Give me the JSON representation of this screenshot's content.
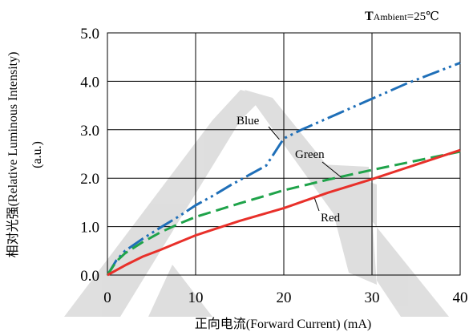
{
  "chart_data": {
    "type": "line",
    "condition": {
      "bold": "T",
      "sub": "Ambient",
      "rest": "=25℃"
    },
    "xlabel": "正向电流(Forward Current) (mA)",
    "ylabel_line1": "相对光强(Relative Luminous Intensity)",
    "ylabel_line2": "(a.u.)",
    "xlim": [
      0,
      40
    ],
    "ylim": [
      0,
      5
    ],
    "xticks": [
      0,
      10,
      20,
      30,
      40
    ],
    "yticks": [
      0,
      1,
      2,
      3,
      4,
      5
    ],
    "xtick_labels": [
      "0",
      "10",
      "20",
      "30",
      "40"
    ],
    "ytick_labels": [
      "0.0",
      "1.0",
      "2.0",
      "3.0",
      "4.0",
      "5.0"
    ],
    "grid": true,
    "series": [
      {
        "name": "Blue",
        "color": "#1f6fb8",
        "style": "dash-dot-dot",
        "x": [
          0,
          1,
          2,
          4,
          6,
          8,
          10,
          12,
          14,
          16,
          18,
          20,
          22,
          24,
          26,
          28,
          30,
          32,
          34,
          36,
          38,
          40
        ],
        "y": [
          0,
          0.3,
          0.5,
          0.75,
          0.98,
          1.2,
          1.44,
          1.64,
          1.86,
          2.06,
          2.26,
          2.82,
          3.0,
          3.16,
          3.32,
          3.48,
          3.64,
          3.8,
          3.96,
          4.1,
          4.24,
          4.38
        ]
      },
      {
        "name": "Green",
        "color": "#1fa34a",
        "style": "dashed",
        "x": [
          0,
          1,
          2,
          4,
          6,
          8,
          10,
          15,
          20,
          25,
          30,
          35,
          40
        ],
        "y": [
          0,
          0.28,
          0.45,
          0.68,
          0.88,
          1.05,
          1.2,
          1.48,
          1.75,
          1.97,
          2.17,
          2.36,
          2.55
        ]
      },
      {
        "name": "Red",
        "color": "#e8302a",
        "style": "solid",
        "x": [
          0,
          2,
          4,
          6,
          8,
          10,
          15,
          20,
          25,
          30,
          35,
          40
        ],
        "y": [
          0,
          0.2,
          0.38,
          0.52,
          0.67,
          0.82,
          1.12,
          1.38,
          1.7,
          1.98,
          2.28,
          2.58
        ]
      }
    ]
  }
}
